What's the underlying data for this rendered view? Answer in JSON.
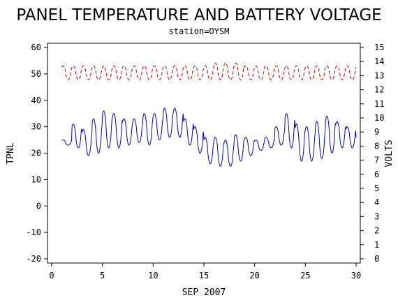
{
  "chart_data": {
    "type": "line",
    "title": "PANEL TEMPERATURE AND BATTERY VOLTAGE",
    "subtitle": "station=OYSM",
    "xlabel": "SEP 2007",
    "ylabel_left": "TPNL",
    "ylabel_right": "VOLTS",
    "xlim": [
      0,
      30
    ],
    "ylim_left": [
      -20,
      60
    ],
    "ylim_right": [
      0,
      15
    ],
    "x_ticks": [
      "0",
      "5",
      "10",
      "15",
      "20",
      "25",
      "30"
    ],
    "y_left_ticks": [
      "-20",
      "-10",
      "0",
      "10",
      "20",
      "30",
      "40",
      "50",
      "60"
    ],
    "y_right_ticks": [
      "0",
      "1",
      "2",
      "3",
      "4",
      "5",
      "6",
      "7",
      "8",
      "9",
      "10",
      "11",
      "12",
      "13",
      "14",
      "15"
    ],
    "grid": false,
    "colors": {
      "temperature": "#0000cc",
      "voltage": "#dd0000",
      "axes": "#000000"
    },
    "series": [
      {
        "axis": "left",
        "style": "solid",
        "daily": [
          {
            "day": 1,
            "min": 23,
            "max": 25
          },
          {
            "day": 2,
            "min": 22,
            "max": 31
          },
          {
            "day": 3,
            "min": 19,
            "max": 29
          },
          {
            "day": 4,
            "min": 20,
            "max": 33
          },
          {
            "day": 5,
            "min": 22,
            "max": 36
          },
          {
            "day": 6,
            "min": 22,
            "max": 35
          },
          {
            "day": 7,
            "min": 23,
            "max": 33
          },
          {
            "day": 8,
            "min": 24,
            "max": 33
          },
          {
            "day": 9,
            "min": 23,
            "max": 35
          },
          {
            "day": 10,
            "min": 25,
            "max": 35
          },
          {
            "day": 11,
            "min": 26,
            "max": 37
          },
          {
            "day": 12,
            "min": 26,
            "max": 37
          },
          {
            "day": 13,
            "min": 23,
            "max": 33
          },
          {
            "day": 14,
            "min": 20,
            "max": 30
          },
          {
            "day": 15,
            "min": 16,
            "max": 26
          },
          {
            "day": 16,
            "min": 15,
            "max": 26
          },
          {
            "day": 17,
            "min": 15,
            "max": 25
          },
          {
            "day": 18,
            "min": 17,
            "max": 27
          },
          {
            "day": 19,
            "min": 19,
            "max": 26
          },
          {
            "day": 20,
            "min": 21,
            "max": 25
          },
          {
            "day": 21,
            "min": 22,
            "max": 26
          },
          {
            "day": 22,
            "min": 23,
            "max": 30
          },
          {
            "day": 23,
            "min": 22,
            "max": 35
          },
          {
            "day": 24,
            "min": 17,
            "max": 31
          },
          {
            "day": 25,
            "min": 17,
            "max": 30
          },
          {
            "day": 26,
            "min": 18,
            "max": 32
          },
          {
            "day": 27,
            "min": 20,
            "max": 34
          },
          {
            "day": 28,
            "min": 22,
            "max": 32
          },
          {
            "day": 29,
            "min": 22,
            "max": 30
          },
          {
            "day": 30,
            "min": 16,
            "max": 27
          }
        ]
      },
      {
        "axis": "right",
        "style": "dashed",
        "daily": [
          {
            "day": 1,
            "min": 12.7,
            "max": 13.7
          },
          {
            "day": 2,
            "min": 12.7,
            "max": 13.7
          },
          {
            "day": 3,
            "min": 12.7,
            "max": 13.7
          },
          {
            "day": 4,
            "min": 12.7,
            "max": 13.7
          },
          {
            "day": 5,
            "min": 12.7,
            "max": 13.7
          },
          {
            "day": 6,
            "min": 12.7,
            "max": 13.7
          },
          {
            "day": 7,
            "min": 12.7,
            "max": 13.7
          },
          {
            "day": 8,
            "min": 12.7,
            "max": 13.7
          },
          {
            "day": 9,
            "min": 12.7,
            "max": 13.7
          },
          {
            "day": 10,
            "min": 12.7,
            "max": 13.7
          },
          {
            "day": 11,
            "min": 12.7,
            "max": 13.7
          },
          {
            "day": 12,
            "min": 12.7,
            "max": 13.7
          },
          {
            "day": 13,
            "min": 12.7,
            "max": 13.7
          },
          {
            "day": 14,
            "min": 12.7,
            "max": 13.7
          },
          {
            "day": 15,
            "min": 12.7,
            "max": 13.7
          },
          {
            "day": 16,
            "min": 12.7,
            "max": 13.9
          },
          {
            "day": 17,
            "min": 12.7,
            "max": 13.9
          },
          {
            "day": 18,
            "min": 12.7,
            "max": 13.9
          },
          {
            "day": 19,
            "min": 12.7,
            "max": 13.7
          },
          {
            "day": 20,
            "min": 12.7,
            "max": 13.7
          },
          {
            "day": 21,
            "min": 12.7,
            "max": 13.7
          },
          {
            "day": 22,
            "min": 12.7,
            "max": 13.7
          },
          {
            "day": 23,
            "min": 12.7,
            "max": 13.7
          },
          {
            "day": 24,
            "min": 12.7,
            "max": 13.7
          },
          {
            "day": 25,
            "min": 12.7,
            "max": 13.7
          },
          {
            "day": 26,
            "min": 12.7,
            "max": 13.7
          },
          {
            "day": 27,
            "min": 12.7,
            "max": 13.7
          },
          {
            "day": 28,
            "min": 12.7,
            "max": 13.7
          },
          {
            "day": 29,
            "min": 12.7,
            "max": 13.7
          },
          {
            "day": 30,
            "min": 12.7,
            "max": 13.7
          }
        ]
      }
    ]
  }
}
